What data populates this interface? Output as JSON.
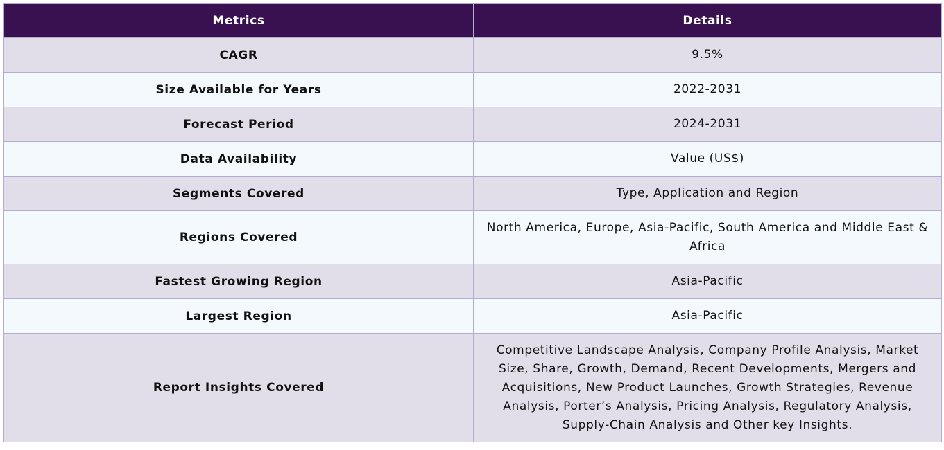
{
  "table": {
    "headers": [
      "Metrics",
      "Details"
    ],
    "rows": [
      {
        "metric": "CAGR",
        "details": "9.5%"
      },
      {
        "metric": "Size Available for Years",
        "details": "2022-2031"
      },
      {
        "metric": "Forecast Period",
        "details": "2024-2031"
      },
      {
        "metric": "Data Availability",
        "details": "Value (US$)"
      },
      {
        "metric": "Segments Covered",
        "details": "Type, Application and Region"
      },
      {
        "metric": "Regions Covered",
        "details": "North America, Europe, Asia-Pacific, South America and Middle East & Africa"
      },
      {
        "metric": "Fastest Growing Region",
        "details": "Asia-Pacific"
      },
      {
        "metric": "Largest Region",
        "details": "Asia-Pacific"
      },
      {
        "metric": "Report Insights Covered",
        "details": "Competitive Landscape Analysis, Company Profile Analysis, Market Size, Share, Growth, Demand, Recent Developments, Mergers and Acquisitions, New Product Launches, Growth Strategies, Revenue Analysis, Porter’s Analysis, Pricing Analysis, Regulatory Analysis, Supply-Chain Analysis and Other key Insights."
      }
    ]
  },
  "colors": {
    "header_bg": "#3a1150",
    "row_odd_bg": "#e1deea",
    "row_even_bg": "#f3f9fc",
    "border": "#b3aed1"
  }
}
